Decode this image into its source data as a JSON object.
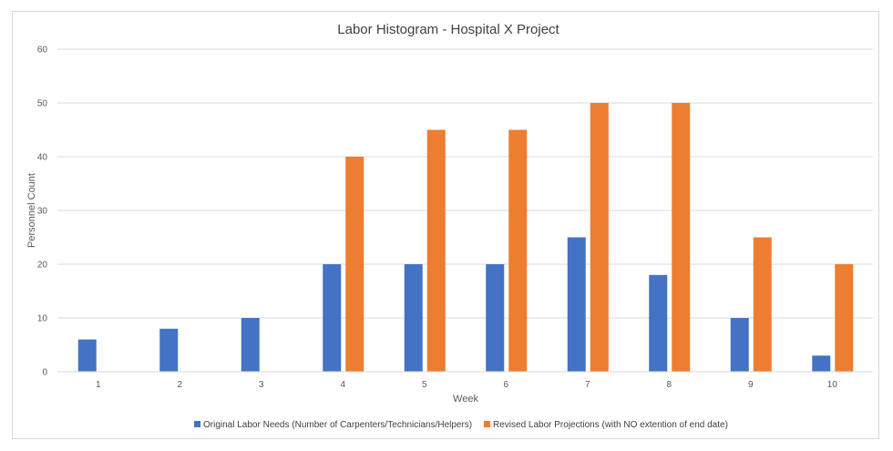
{
  "chart_data": {
    "type": "bar",
    "title": "Labor Histogram - Hospital X Project",
    "xlabel": "Week",
    "ylabel": "Personnel Count",
    "categories": [
      "1",
      "2",
      "3",
      "4",
      "5",
      "6",
      "7",
      "8",
      "9",
      "10"
    ],
    "ylim": [
      0,
      60
    ],
    "yticks": [
      "0",
      "10",
      "20",
      "30",
      "40",
      "50",
      "60"
    ],
    "grid": true,
    "legend_position": "bottom",
    "series": [
      {
        "name": "Original Labor Needs (Number of Carpenters/Technicians/Helpers)",
        "color": "#4472c4",
        "values": [
          6,
          8,
          10,
          20,
          20,
          20,
          25,
          18,
          10,
          3
        ]
      },
      {
        "name": "Revised Labor Projections (with NO extention of end date)",
        "color": "#ed7d31",
        "values": [
          0,
          0,
          0,
          40,
          45,
          45,
          50,
          50,
          25,
          20
        ]
      }
    ]
  }
}
